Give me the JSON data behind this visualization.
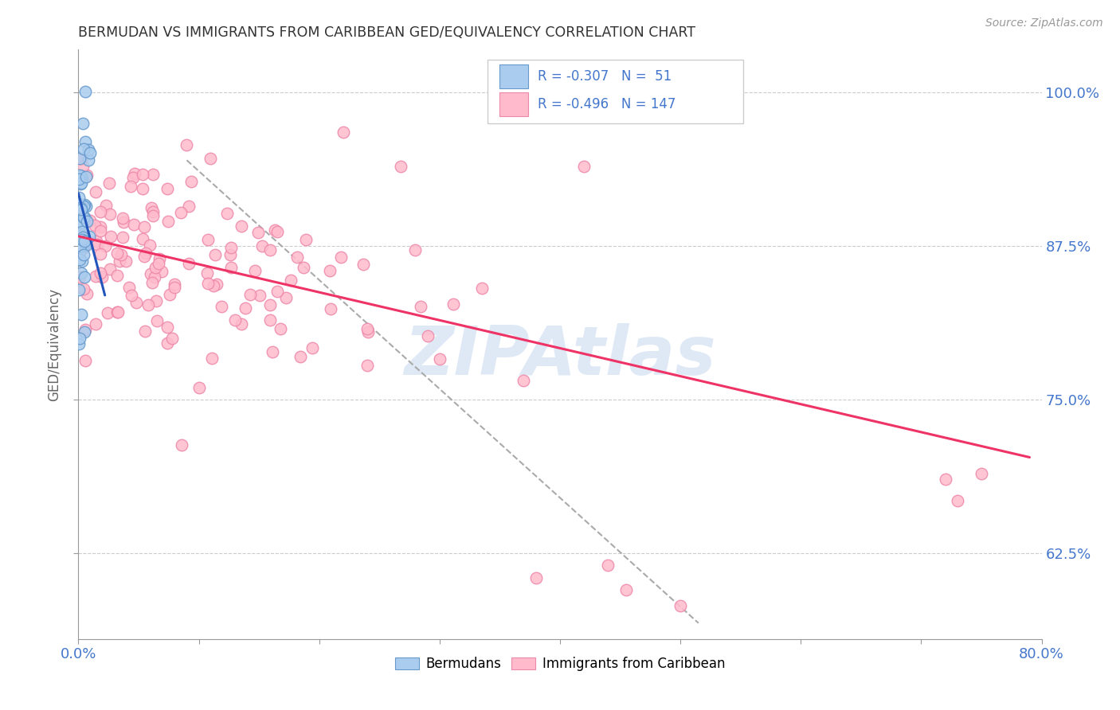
{
  "title": "BERMUDAN VS IMMIGRANTS FROM CARIBBEAN GED/EQUIVALENCY CORRELATION CHART",
  "source": "Source: ZipAtlas.com",
  "ylabel": "GED/Equivalency",
  "ytick_labels": [
    "100.0%",
    "87.5%",
    "75.0%",
    "62.5%"
  ],
  "ytick_values": [
    1.0,
    0.875,
    0.75,
    0.625
  ],
  "blue_r_text": "R = -0.307",
  "blue_n_text": "N =  51",
  "pink_r_text": "R = -0.496",
  "pink_n_text": "N = 147",
  "text_color": "#4477cc",
  "blue_face": "#aaccee",
  "blue_edge": "#6699cc",
  "pink_face": "#ffbbcc",
  "pink_edge": "#ee88aa",
  "xlim": [
    0.0,
    0.8
  ],
  "ylim": [
    0.555,
    1.035
  ],
  "blue_line": {
    "x0": 0.0,
    "y0": 0.918,
    "x1": 0.022,
    "y1": 0.835
  },
  "pink_line": {
    "x0": 0.0,
    "y0": 0.883,
    "x1": 0.79,
    "y1": 0.703
  },
  "dashed_line": {
    "x0": 0.09,
    "y0": 0.945,
    "x1": 0.515,
    "y1": 0.568
  },
  "grid_color": "#cccccc",
  "watermark": "ZIPAtlas",
  "xtick_positions": [
    0.0,
    0.1,
    0.2,
    0.3,
    0.4,
    0.5,
    0.6,
    0.7,
    0.8
  ],
  "xtick_labels": [
    "0.0%",
    "",
    "",
    "",
    "",
    "",
    "",
    "",
    "80.0%"
  ],
  "bottom_legend_labels": [
    "Bermudans",
    "Immigrants from Caribbean"
  ]
}
